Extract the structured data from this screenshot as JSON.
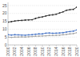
{
  "chart_data": {
    "type": "line",
    "x": [
      2000,
      2001,
      2002,
      2003,
      2004,
      2005,
      2006,
      2007,
      2008,
      2009,
      2010,
      2011,
      2012,
      2013,
      2014,
      2015,
      2016,
      2017,
      2018,
      2019,
      2020
    ],
    "series": [
      {
        "color": "#2b2b2b",
        "values": [
          14.5,
          14.8,
          15.2,
          15.5,
          15.6,
          15.8,
          15.9,
          16.0,
          16.8,
          17.5,
          17.8,
          18.4,
          18.9,
          19.1,
          19.5,
          20.3,
          21.0,
          22.0,
          22.4,
          22.6,
          24.0
        ]
      },
      {
        "color": "#4472c4",
        "values": [
          6.5,
          6.3,
          6.5,
          6.4,
          6.3,
          6.2,
          6.4,
          6.5,
          6.8,
          7.0,
          7.0,
          7.5,
          7.6,
          7.4,
          7.5,
          7.6,
          7.8,
          8.2,
          8.5,
          8.8,
          9.5
        ]
      },
      {
        "color": "#a5a5a5",
        "values": [
          5.0,
          4.8,
          5.0,
          5.0,
          5.1,
          5.0,
          5.2,
          5.3,
          5.5,
          5.6,
          5.7,
          5.8,
          6.0,
          6.0,
          6.1,
          6.2,
          6.5,
          6.7,
          7.0,
          7.2,
          7.8
        ]
      }
    ],
    "xlim": [
      2000,
      2020
    ],
    "xticks": [
      2000,
      2002,
      2004,
      2006,
      2008,
      2010,
      2012,
      2014,
      2016,
      2018,
      2020
    ],
    "ylim": [
      0,
      27
    ],
    "yticks": [
      0,
      5,
      10,
      15,
      20,
      25
    ],
    "grid": true,
    "marker": "circle"
  }
}
